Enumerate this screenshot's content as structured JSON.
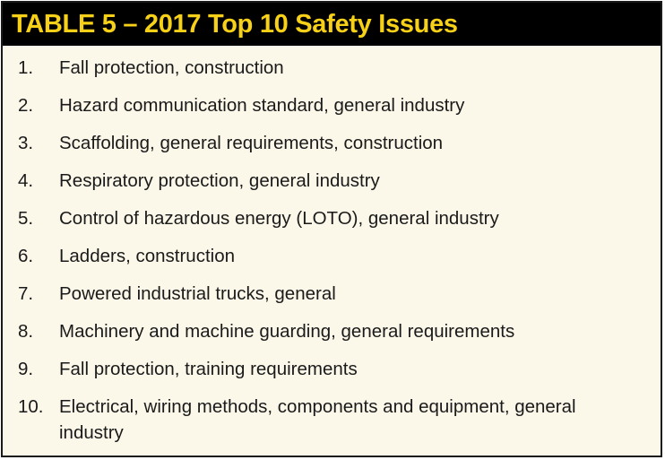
{
  "table": {
    "title": "TABLE 5 – 2017 Top 10 Safety Issues",
    "title_color": "#f7d117",
    "header_bg": "#000000",
    "body_bg": "#fcf8e9",
    "items": [
      {
        "number": "1.",
        "text": "Fall protection, construction"
      },
      {
        "number": "2.",
        "text": "Hazard communication standard, general industry"
      },
      {
        "number": "3.",
        "text": "Scaffolding, general requirements, construction"
      },
      {
        "number": "4.",
        "text": "Respiratory protection, general industry"
      },
      {
        "number": "5.",
        "text": "Control of hazardous energy (LOTO), general industry"
      },
      {
        "number": "6.",
        "text": "Ladders, construction"
      },
      {
        "number": "7.",
        "text": "Powered industrial trucks, general"
      },
      {
        "number": "8.",
        "text": "Machinery and machine guarding, general requirements"
      },
      {
        "number": "9.",
        "text": "Fall protection, training requirements"
      },
      {
        "number": "10.",
        "text": "Electrical, wiring methods, components and equipment, general industry"
      }
    ]
  }
}
